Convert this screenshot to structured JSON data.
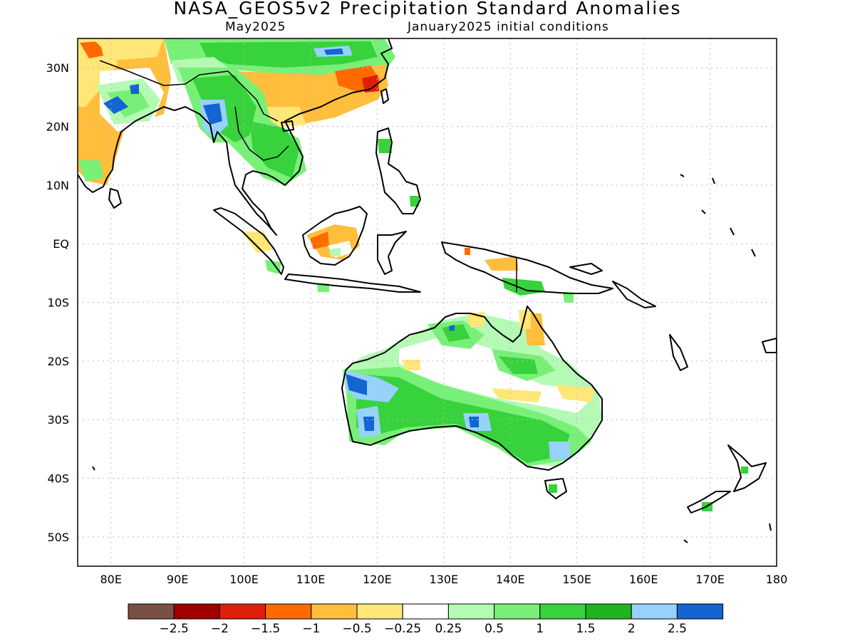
{
  "title": "NASA_GEOS5v2 Precipitation Standard Anomalies",
  "subtitle_left": "May2025",
  "subtitle_right": "January2025 initial conditions",
  "map": {
    "lon_range": [
      75,
      180
    ],
    "lat_range": [
      -55,
      35
    ],
    "x_ticks": [
      {
        "value": 80,
        "label": "80E"
      },
      {
        "value": 90,
        "label": "90E"
      },
      {
        "value": 100,
        "label": "100E"
      },
      {
        "value": 110,
        "label": "110E"
      },
      {
        "value": 120,
        "label": "120E"
      },
      {
        "value": 130,
        "label": "130E"
      },
      {
        "value": 140,
        "label": "140E"
      },
      {
        "value": 150,
        "label": "150E"
      },
      {
        "value": 160,
        "label": "160E"
      },
      {
        "value": 170,
        "label": "170E"
      },
      {
        "value": 180,
        "label": "180"
      }
    ],
    "y_ticks": [
      {
        "value": 30,
        "label": "30N"
      },
      {
        "value": 20,
        "label": "20N"
      },
      {
        "value": 10,
        "label": "10N"
      },
      {
        "value": 0,
        "label": "EQ"
      },
      {
        "value": -10,
        "label": "10S"
      },
      {
        "value": -20,
        "label": "20S"
      },
      {
        "value": -30,
        "label": "30S"
      },
      {
        "value": -40,
        "label": "40S"
      },
      {
        "value": -50,
        "label": "50S"
      }
    ],
    "grid": true
  },
  "colorbar": {
    "colors": [
      "#7a5045",
      "#a00000",
      "#e01e0a",
      "#ff6a00",
      "#ffbe3c",
      "#ffe678",
      "#ffffff",
      "#b4fab4",
      "#78f078",
      "#37d23c",
      "#1eb41e",
      "#96d2fa",
      "#1464d2"
    ],
    "labels": [
      "-2.5",
      "-2",
      "-1.5",
      "-1",
      "-0.5",
      "-0.25",
      "0.25",
      "0.5",
      "1",
      "1.5",
      "2",
      "2.5"
    ]
  }
}
